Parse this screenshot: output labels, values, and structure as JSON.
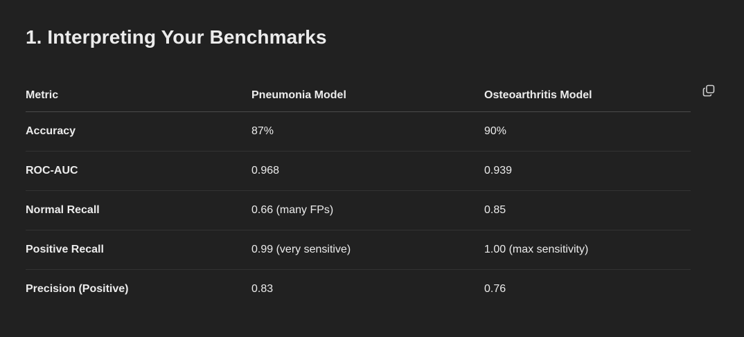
{
  "section": {
    "title": "1. Interpreting Your Benchmarks"
  },
  "table": {
    "headers": [
      "Metric",
      "Pneumonia Model",
      "Osteoarthritis Model"
    ],
    "rows": [
      [
        "Accuracy",
        "87%",
        "90%"
      ],
      [
        "ROC-AUC",
        "0.968",
        "0.939"
      ],
      [
        "Normal Recall",
        "0.66 (many FPs)",
        "0.85"
      ],
      [
        "Positive Recall",
        "0.99 (very sensitive)",
        "1.00 (max sensitivity)"
      ],
      [
        "Precision (Positive)",
        "0.83",
        "0.76"
      ]
    ]
  },
  "icons": {
    "copy": "copy-icon"
  },
  "colors": {
    "background": "#212121",
    "text": "#ececec",
    "divider": "#333333"
  }
}
